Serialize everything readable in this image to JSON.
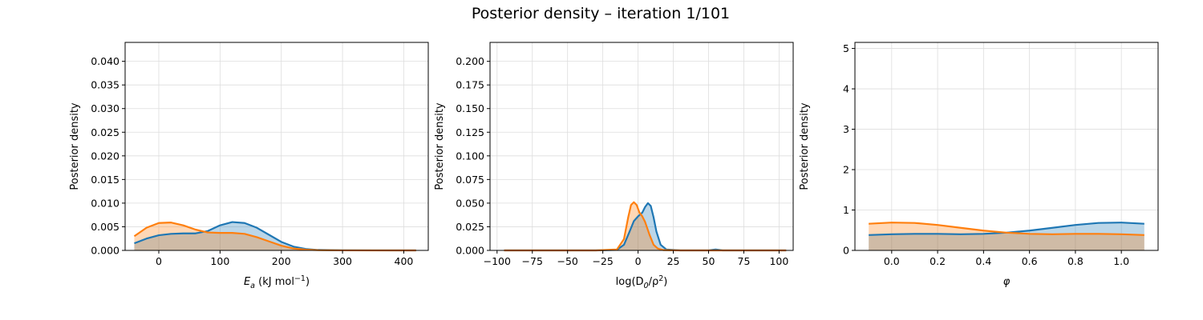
{
  "title": "Posterior density – iteration 1/101",
  "colors": {
    "series1": "#1f77b4",
    "series2": "#ff7f0e",
    "grid": "#dddddd"
  },
  "chart_data": [
    {
      "type": "area",
      "xlabel_base": "E",
      "xlabel_sub": "a",
      "xlabel_rest": " (kJ mol",
      "xlabel_sup": "−1",
      "xlabel_close": ")",
      "ylabel": "Posterior density",
      "xlim": [
        -55,
        440
      ],
      "ylim": [
        0,
        0.044
      ],
      "xticks": [
        0,
        100,
        200,
        300,
        400
      ],
      "xtick_labels": [
        "0",
        "100",
        "200",
        "300",
        "400"
      ],
      "yticks": [
        0,
        0.005,
        0.01,
        0.015,
        0.02,
        0.025,
        0.03,
        0.035,
        0.04
      ],
      "ytick_labels": [
        "0.000",
        "0.005",
        "0.010",
        "0.015",
        "0.020",
        "0.025",
        "0.030",
        "0.035",
        "0.040"
      ],
      "grid": true,
      "series": [
        {
          "x": [
            -40,
            -20,
            0,
            20,
            40,
            60,
            80,
            100,
            120,
            140,
            160,
            180,
            200,
            220,
            240,
            260,
            300,
            350,
            420
          ],
          "y": [
            0.0015,
            0.0025,
            0.0032,
            0.0035,
            0.0036,
            0.0036,
            0.0041,
            0.0053,
            0.006,
            0.0058,
            0.0048,
            0.0033,
            0.0018,
            0.0008,
            0.0003,
            0.0001,
            3e-05,
            1e-05,
            0
          ]
        },
        {
          "x": [
            -40,
            -20,
            0,
            20,
            40,
            60,
            80,
            100,
            120,
            140,
            160,
            180,
            200,
            220,
            240,
            260,
            300,
            350,
            420
          ],
          "y": [
            0.003,
            0.0048,
            0.0058,
            0.0059,
            0.0053,
            0.0044,
            0.0038,
            0.0037,
            0.0037,
            0.0035,
            0.0028,
            0.0019,
            0.001,
            0.0004,
            0.00015,
            5e-05,
            1e-05,
            0,
            0
          ]
        }
      ]
    },
    {
      "type": "area",
      "xlabel_base": "log(D",
      "xlabel_sub": "0",
      "xlabel_rest": "/ρ",
      "xlabel_sup": "2",
      "xlabel_close": ")",
      "ylabel": "Posterior density",
      "xlim": [
        -105,
        110
      ],
      "ylim": [
        0,
        0.22
      ],
      "xticks": [
        -100,
        -75,
        -50,
        -25,
        0,
        25,
        50,
        75,
        100
      ],
      "xtick_labels": [
        "−100",
        "−75",
        "−50",
        "−25",
        "0",
        "25",
        "50",
        "75",
        "100"
      ],
      "yticks": [
        0,
        0.025,
        0.05,
        0.075,
        0.1,
        0.125,
        0.15,
        0.175,
        0.2
      ],
      "ytick_labels": [
        "0.000",
        "0.025",
        "0.050",
        "0.075",
        "0.100",
        "0.125",
        "0.150",
        "0.175",
        "0.200"
      ],
      "grid": true,
      "series": [
        {
          "x": [
            -95,
            -30,
            -15,
            -10,
            -6,
            -3,
            0,
            3,
            5,
            7,
            9,
            11,
            13,
            16,
            20,
            30,
            50,
            55,
            60,
            105
          ],
          "y": [
            0,
            0,
            0.0005,
            0.006,
            0.02,
            0.031,
            0.036,
            0.04,
            0.046,
            0.05,
            0.047,
            0.035,
            0.02,
            0.006,
            0.001,
            0,
            0,
            0.001,
            0,
            0
          ]
        },
        {
          "x": [
            -95,
            -30,
            -15,
            -10,
            -7,
            -5,
            -3,
            -1,
            1,
            3,
            5,
            8,
            11,
            14,
            18,
            30,
            105
          ],
          "y": [
            0,
            0,
            0.001,
            0.012,
            0.035,
            0.048,
            0.051,
            0.048,
            0.04,
            0.036,
            0.03,
            0.017,
            0.006,
            0.002,
            0.0003,
            0,
            0
          ]
        }
      ]
    },
    {
      "type": "area",
      "xlabel_base": "φ",
      "xlabel_sub": "",
      "xlabel_rest": "",
      "xlabel_sup": "",
      "xlabel_close": "",
      "ylabel": "Posterior density",
      "xlim": [
        -0.16,
        1.16
      ],
      "ylim": [
        0,
        5.15
      ],
      "xticks": [
        0,
        0.2,
        0.4,
        0.6,
        0.8,
        1.0
      ],
      "xtick_labels": [
        "0.0",
        "0.2",
        "0.4",
        "0.6",
        "0.8",
        "1.0"
      ],
      "yticks": [
        0,
        1,
        2,
        3,
        4,
        5
      ],
      "ytick_labels": [
        "0",
        "1",
        "2",
        "3",
        "4",
        "5"
      ],
      "grid": true,
      "series": [
        {
          "x": [
            -0.1,
            0.0,
            0.1,
            0.2,
            0.3,
            0.4,
            0.5,
            0.6,
            0.7,
            0.8,
            0.9,
            1.0,
            1.1
          ],
          "y": [
            0.38,
            0.4,
            0.41,
            0.41,
            0.4,
            0.41,
            0.44,
            0.49,
            0.56,
            0.63,
            0.68,
            0.69,
            0.66
          ]
        },
        {
          "x": [
            -0.1,
            0.0,
            0.1,
            0.2,
            0.3,
            0.4,
            0.5,
            0.6,
            0.7,
            0.8,
            0.9,
            1.0,
            1.1
          ],
          "y": [
            0.66,
            0.69,
            0.68,
            0.63,
            0.56,
            0.49,
            0.44,
            0.41,
            0.4,
            0.41,
            0.41,
            0.4,
            0.38
          ]
        }
      ]
    }
  ]
}
